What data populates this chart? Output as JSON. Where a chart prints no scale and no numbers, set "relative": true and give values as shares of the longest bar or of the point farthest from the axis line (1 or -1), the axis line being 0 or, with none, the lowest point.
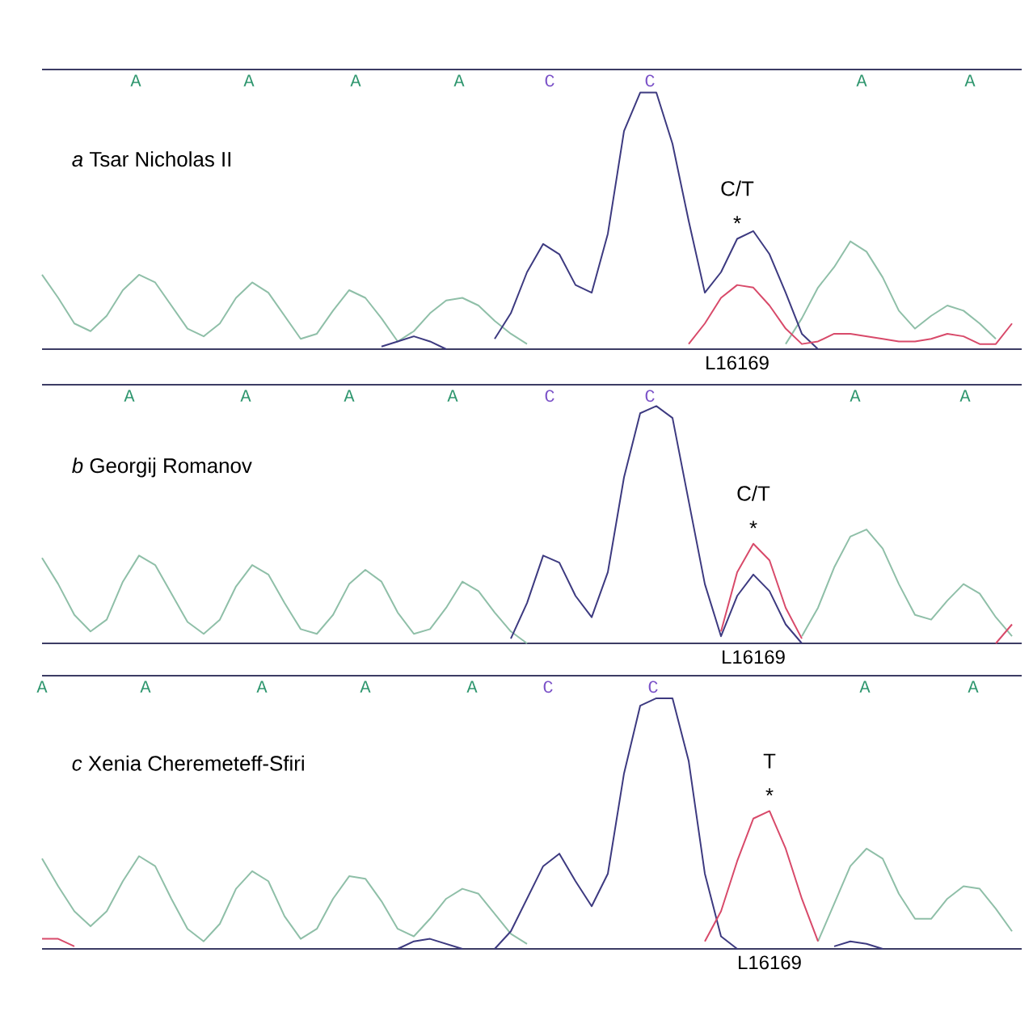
{
  "chart_data": [
    {
      "type": "line",
      "relative": true,
      "title": "*a* Tsar Nicholas II",
      "categories": [
        null,
        null,
        null,
        null,
        null,
        null,
        null,
        null,
        null,
        null,
        null,
        null,
        null,
        null,
        null,
        null,
        null,
        null,
        null,
        null,
        null,
        null,
        null,
        null,
        null,
        null,
        null,
        null,
        null,
        null,
        null,
        null,
        null,
        null,
        null,
        null,
        null,
        null,
        null,
        null,
        null,
        null,
        null,
        null,
        null,
        null,
        null,
        null,
        null,
        null,
        null,
        null,
        null,
        null,
        null,
        null,
        null,
        null,
        null,
        null,
        null
      ],
      "series": [
        {
          "color": "#8fbfa8",
          "values": [
            0.29,
            0.2,
            0.1,
            0.07,
            0.13,
            0.23,
            0.29,
            0.26,
            0.17,
            0.08,
            0.05,
            0.1,
            0.2,
            0.26,
            0.22,
            0.13,
            0.04,
            0.06,
            0.15,
            0.23,
            0.2,
            0.12,
            0.03,
            0.07,
            0.14,
            0.19,
            0.2,
            0.17,
            0.11,
            0.06,
            0.02,
            null,
            null,
            null,
            null,
            null,
            null,
            null,
            null,
            null,
            null,
            null,
            null,
            null,
            null,
            null,
            0.02,
            0.12,
            0.24,
            0.32,
            0.42,
            0.38,
            0.28,
            0.15,
            0.08,
            0.13,
            0.17,
            0.15,
            0.1,
            0.04,
            null
          ]
        },
        {
          "color": "#3d3a80",
          "values": [
            null,
            null,
            null,
            null,
            null,
            null,
            null,
            null,
            null,
            null,
            null,
            null,
            null,
            null,
            null,
            null,
            null,
            null,
            null,
            null,
            null,
            0.01,
            0.03,
            0.05,
            0.03,
            0,
            null,
            null,
            0.04,
            0.14,
            0.3,
            0.41,
            0.37,
            0.25,
            0.22,
            0.45,
            0.85,
            1,
            1,
            0.8,
            0.5,
            0.22,
            0.3,
            0.43,
            0.46,
            0.37,
            0.22,
            0.06,
            0,
            null,
            null,
            null,
            null,
            null,
            null,
            null,
            null,
            null,
            null,
            null,
            null
          ]
        },
        {
          "color": "#d84a6a",
          "values": [
            null,
            null,
            null,
            null,
            null,
            null,
            null,
            null,
            null,
            null,
            null,
            null,
            null,
            null,
            null,
            null,
            null,
            null,
            null,
            null,
            null,
            null,
            null,
            null,
            null,
            null,
            null,
            null,
            null,
            null,
            null,
            null,
            null,
            null,
            null,
            null,
            null,
            null,
            null,
            null,
            0.02,
            0.1,
            0.2,
            0.25,
            0.24,
            0.17,
            0.08,
            0.02,
            0.03,
            0.06,
            0.06,
            0.05,
            0.04,
            0.03,
            0.03,
            0.04,
            0.06,
            0.05,
            0.02,
            0.02,
            0.1
          ]
        }
      ],
      "annotations": [
        "A",
        "A",
        "A",
        "A",
        "C",
        "C",
        "A",
        "A",
        "C/T",
        "*",
        "L16169"
      ]
    },
    {
      "type": "line",
      "relative": true,
      "title": "*b* Georgij Romanov",
      "categories": [
        null,
        null,
        null,
        null,
        null,
        null,
        null,
        null,
        null,
        null,
        null,
        null,
        null,
        null,
        null,
        null,
        null,
        null,
        null,
        null,
        null,
        null,
        null,
        null,
        null,
        null,
        null,
        null,
        null,
        null,
        null,
        null,
        null,
        null,
        null,
        null,
        null,
        null,
        null,
        null,
        null,
        null,
        null,
        null,
        null,
        null,
        null,
        null,
        null,
        null,
        null,
        null,
        null,
        null,
        null,
        null,
        null,
        null,
        null,
        null,
        null
      ],
      "series": [
        {
          "color": "#8fbfa8",
          "values": [
            0.36,
            0.25,
            0.12,
            0.05,
            0.1,
            0.26,
            0.37,
            0.33,
            0.21,
            0.09,
            0.04,
            0.1,
            0.24,
            0.33,
            0.29,
            0.17,
            0.06,
            0.04,
            0.12,
            0.25,
            0.31,
            0.26,
            0.13,
            0.04,
            0.06,
            0.15,
            0.26,
            0.22,
            0.13,
            0.05,
            0,
            null,
            null,
            null,
            null,
            null,
            null,
            null,
            null,
            null,
            null,
            null,
            null,
            null,
            null,
            null,
            null,
            0.03,
            0.15,
            0.32,
            0.45,
            0.48,
            0.4,
            0.25,
            0.12,
            0.1,
            0.18,
            0.25,
            0.21,
            0.11,
            0.03
          ]
        },
        {
          "color": "#3d3a80",
          "values": [
            null,
            null,
            null,
            null,
            null,
            null,
            null,
            null,
            null,
            null,
            null,
            null,
            null,
            null,
            null,
            null,
            null,
            null,
            null,
            null,
            null,
            null,
            null,
            null,
            null,
            null,
            null,
            null,
            null,
            0.02,
            0.17,
            0.37,
            0.34,
            0.2,
            0.11,
            0.3,
            0.7,
            0.97,
            1,
            0.95,
            0.6,
            0.25,
            0.03,
            0.2,
            0.29,
            0.22,
            0.08,
            0,
            null,
            null,
            null,
            null,
            null,
            null,
            null,
            null,
            null,
            null,
            null,
            null,
            null
          ]
        },
        {
          "color": "#d84a6a",
          "values": [
            null,
            null,
            null,
            null,
            null,
            null,
            null,
            null,
            null,
            null,
            null,
            null,
            null,
            null,
            null,
            null,
            null,
            null,
            null,
            null,
            null,
            null,
            null,
            null,
            null,
            null,
            null,
            null,
            null,
            null,
            null,
            null,
            null,
            null,
            null,
            null,
            null,
            null,
            null,
            null,
            null,
            null,
            0.05,
            0.3,
            0.42,
            0.35,
            0.15,
            0.02,
            null,
            null,
            null,
            null,
            null,
            null,
            null,
            null,
            null,
            null,
            null,
            0,
            0.08
          ]
        }
      ],
      "annotations": [
        "A",
        "A",
        "A",
        "A",
        "C",
        "C",
        "A",
        "A",
        "C/T",
        "*",
        "L16169"
      ]
    },
    {
      "type": "line",
      "relative": true,
      "title": "*c* Xenia Cheremeteff-Sfiri",
      "categories": [
        null,
        null,
        null,
        null,
        null,
        null,
        null,
        null,
        null,
        null,
        null,
        null,
        null,
        null,
        null,
        null,
        null,
        null,
        null,
        null,
        null,
        null,
        null,
        null,
        null,
        null,
        null,
        null,
        null,
        null,
        null,
        null,
        null,
        null,
        null,
        null,
        null,
        null,
        null,
        null,
        null,
        null,
        null,
        null,
        null,
        null,
        null,
        null,
        null,
        null,
        null,
        null,
        null,
        null,
        null,
        null,
        null,
        null,
        null,
        null,
        null
      ],
      "series": [
        {
          "color": "#8fbfa8",
          "values": [
            0.36,
            0.25,
            0.15,
            0.09,
            0.15,
            0.27,
            0.37,
            0.33,
            0.2,
            0.08,
            0.03,
            0.1,
            0.24,
            0.31,
            0.27,
            0.13,
            0.04,
            0.08,
            0.2,
            0.29,
            0.28,
            0.19,
            0.08,
            0.05,
            0.12,
            0.2,
            0.24,
            0.22,
            0.14,
            0.06,
            0.02,
            null,
            null,
            null,
            null,
            null,
            null,
            null,
            null,
            null,
            null,
            null,
            null,
            null,
            null,
            null,
            null,
            null,
            0.03,
            0.18,
            0.33,
            0.4,
            0.36,
            0.22,
            0.12,
            0.12,
            0.2,
            0.25,
            0.24,
            0.16,
            0.07
          ]
        },
        {
          "color": "#3d3a80",
          "values": [
            null,
            null,
            null,
            null,
            null,
            null,
            null,
            null,
            null,
            null,
            null,
            null,
            null,
            null,
            null,
            null,
            null,
            null,
            null,
            null,
            null,
            null,
            0,
            0.03,
            0.04,
            0.02,
            0,
            null,
            0,
            0.07,
            0.2,
            0.33,
            0.38,
            0.27,
            0.17,
            0.3,
            0.7,
            0.97,
            1,
            1,
            0.75,
            0.3,
            0.05,
            0,
            null,
            null,
            null,
            null,
            null,
            0.01,
            0.03,
            0.02,
            0,
            null,
            null,
            null,
            null,
            null,
            null,
            null,
            null
          ]
        },
        {
          "color": "#d84a6a",
          "values": [
            0.04,
            0.04,
            0.01,
            null,
            null,
            null,
            null,
            null,
            null,
            null,
            null,
            null,
            null,
            null,
            null,
            null,
            null,
            null,
            null,
            null,
            null,
            null,
            null,
            null,
            null,
            null,
            null,
            null,
            null,
            null,
            null,
            null,
            null,
            null,
            null,
            null,
            null,
            null,
            null,
            null,
            null,
            0.03,
            0.15,
            0.35,
            0.52,
            0.55,
            0.4,
            0.2,
            0.03,
            null,
            null,
            null,
            null,
            null,
            null,
            null,
            null,
            null,
            null,
            null,
            null
          ]
        }
      ],
      "annotations": [
        "A",
        "A",
        "A",
        "A",
        "A",
        "C",
        "C",
        "A",
        "A",
        "T",
        "*",
        "L16169"
      ]
    }
  ]
}
